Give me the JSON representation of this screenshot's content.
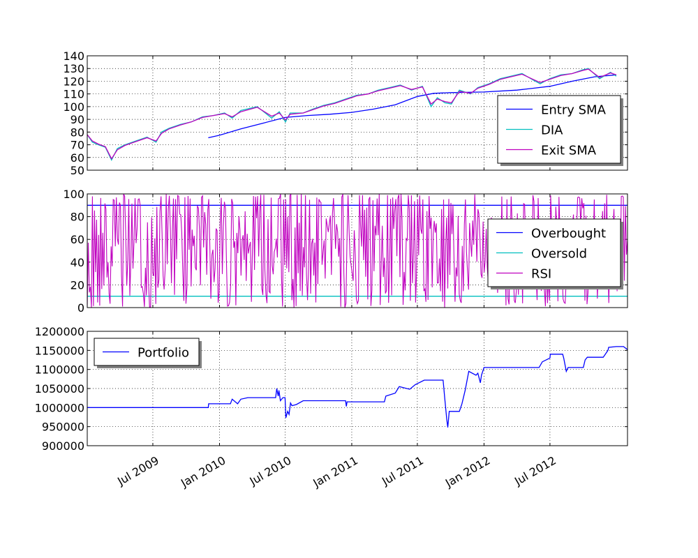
{
  "chart_data": [
    {
      "type": "line",
      "title": "",
      "xlabel": "",
      "ylabel": "",
      "ylim": [
        50,
        140
      ],
      "yticks": [
        "50",
        "60",
        "70",
        "80",
        "90",
        "100",
        "110",
        "120",
        "130",
        "140"
      ],
      "grid": true,
      "legend": "lower-right",
      "series": [
        {
          "name": "Entry SMA",
          "color": "#0000ff",
          "points": [
            [
              "2009-12-01",
              75.5
            ],
            [
              "2010-01-01",
              77.5
            ],
            [
              "2010-03-01",
              82.5
            ],
            [
              "2010-05-01",
              87
            ],
            [
              "2010-07-01",
              91.5
            ],
            [
              "2010-09-01",
              93
            ],
            [
              "2010-11-01",
              94
            ],
            [
              "2011-01-01",
              95.5
            ],
            [
              "2011-03-01",
              98
            ],
            [
              "2011-05-01",
              101.5
            ],
            [
              "2011-07-01",
              108
            ],
            [
              "2011-08-15",
              110.5
            ],
            [
              "2011-10-01",
              111
            ],
            [
              "2012-01-01",
              111.5
            ],
            [
              "2012-04-01",
              113
            ],
            [
              "2012-07-01",
              116
            ],
            [
              "2012-09-01",
              120
            ],
            [
              "2012-11-01",
              123.5
            ],
            [
              "2012-12-31",
              125
            ]
          ]
        },
        {
          "name": "DIA",
          "color": "#00bfbf",
          "points": [
            [
              "2009-01-01",
              78
            ],
            [
              "2009-01-15",
              72
            ],
            [
              "2009-02-01",
              70
            ],
            [
              "2009-02-20",
              68
            ],
            [
              "2009-03-09",
              58
            ],
            [
              "2009-03-25",
              67
            ],
            [
              "2009-04-15",
              70
            ],
            [
              "2009-05-15",
              73
            ],
            [
              "2009-06-15",
              76
            ],
            [
              "2009-07-10",
              72
            ],
            [
              "2009-07-25",
              80
            ],
            [
              "2009-08-15",
              83
            ],
            [
              "2009-09-15",
              86
            ],
            [
              "2009-10-15",
              88
            ],
            [
              "2009-11-15",
              92
            ],
            [
              "2009-12-15",
              93
            ],
            [
              "2010-01-15",
              95
            ],
            [
              "2010-02-05",
              91
            ],
            [
              "2010-03-01",
              97
            ],
            [
              "2010-04-15",
              100
            ],
            [
              "2010-05-25",
              91
            ],
            [
              "2010-06-15",
              96
            ],
            [
              "2010-07-02",
              88
            ],
            [
              "2010-07-15",
              95
            ],
            [
              "2010-08-20",
              95
            ],
            [
              "2010-09-15",
              98
            ],
            [
              "2010-10-15",
              101
            ],
            [
              "2010-11-15",
              103
            ],
            [
              "2010-12-15",
              106
            ],
            [
              "2011-01-15",
              109
            ],
            [
              "2011-02-15",
              110
            ],
            [
              "2011-03-15",
              113
            ],
            [
              "2011-04-15",
              115
            ],
            [
              "2011-05-15",
              117
            ],
            [
              "2011-06-15",
              113
            ],
            [
              "2011-07-15",
              116
            ],
            [
              "2011-08-08",
              100
            ],
            [
              "2011-08-25",
              107
            ],
            [
              "2011-09-15",
              103
            ],
            [
              "2011-10-03",
              102
            ],
            [
              "2011-10-25",
              113
            ],
            [
              "2011-11-25",
              110
            ],
            [
              "2011-12-15",
              115
            ],
            [
              "2012-01-15",
              118
            ],
            [
              "2012-02-15",
              122
            ],
            [
              "2012-03-15",
              124
            ],
            [
              "2012-04-15",
              126
            ],
            [
              "2012-05-15",
              121
            ],
            [
              "2012-06-04",
              118
            ],
            [
              "2012-06-30",
              122
            ],
            [
              "2012-07-31",
              125
            ],
            [
              "2012-08-31",
              126
            ],
            [
              "2012-09-30",
              129
            ],
            [
              "2012-10-15",
              130
            ],
            [
              "2012-11-15",
              122
            ],
            [
              "2012-12-15",
              127
            ],
            [
              "2012-12-31",
              124
            ]
          ]
        },
        {
          "name": "Exit SMA",
          "color": "#bf00bf",
          "points": [
            [
              "2009-01-01",
              78
            ],
            [
              "2009-01-15",
              73
            ],
            [
              "2009-02-01",
              70.5
            ],
            [
              "2009-02-20",
              68.5
            ],
            [
              "2009-03-09",
              59
            ],
            [
              "2009-03-25",
              66
            ],
            [
              "2009-04-15",
              69.5
            ],
            [
              "2009-05-15",
              72.5
            ],
            [
              "2009-06-15",
              75.5
            ],
            [
              "2009-07-10",
              73
            ],
            [
              "2009-07-25",
              79
            ],
            [
              "2009-08-15",
              82.5
            ],
            [
              "2009-09-15",
              85.5
            ],
            [
              "2009-10-15",
              88
            ],
            [
              "2009-11-15",
              91.5
            ],
            [
              "2009-12-15",
              93
            ],
            [
              "2010-01-15",
              94.5
            ],
            [
              "2010-02-05",
              92
            ],
            [
              "2010-03-01",
              96
            ],
            [
              "2010-04-15",
              99.5
            ],
            [
              "2010-05-25",
              92.5
            ],
            [
              "2010-06-15",
              95
            ],
            [
              "2010-07-02",
              89.5
            ],
            [
              "2010-07-15",
              94
            ],
            [
              "2010-08-20",
              95
            ],
            [
              "2010-09-15",
              97.5
            ],
            [
              "2010-10-15",
              100.5
            ],
            [
              "2010-11-15",
              102.5
            ],
            [
              "2010-12-15",
              105.5
            ],
            [
              "2011-01-15",
              108.5
            ],
            [
              "2011-02-15",
              110
            ],
            [
              "2011-03-15",
              112.5
            ],
            [
              "2011-04-15",
              114.5
            ],
            [
              "2011-05-15",
              116.5
            ],
            [
              "2011-06-15",
              113.5
            ],
            [
              "2011-07-15",
              115.5
            ],
            [
              "2011-08-08",
              102
            ],
            [
              "2011-08-25",
              106
            ],
            [
              "2011-09-15",
              104
            ],
            [
              "2011-10-03",
              103
            ],
            [
              "2011-10-25",
              112
            ],
            [
              "2011-11-25",
              110.5
            ],
            [
              "2011-12-15",
              114.5
            ],
            [
              "2012-01-15",
              117.5
            ],
            [
              "2012-02-15",
              121.5
            ],
            [
              "2012-03-15",
              123.5
            ],
            [
              "2012-04-15",
              125.5
            ],
            [
              "2012-05-15",
              121.5
            ],
            [
              "2012-06-04",
              119
            ],
            [
              "2012-06-30",
              121.5
            ],
            [
              "2012-07-31",
              124.5
            ],
            [
              "2012-08-31",
              126
            ],
            [
              "2012-09-30",
              128.5
            ],
            [
              "2012-10-15",
              129.5
            ],
            [
              "2012-11-15",
              123
            ],
            [
              "2012-12-15",
              126.5
            ],
            [
              "2012-12-31",
              125
            ]
          ]
        }
      ]
    },
    {
      "type": "line",
      "title": "",
      "xlabel": "",
      "ylabel": "",
      "ylim": [
        0,
        100
      ],
      "yticks": [
        "0",
        "20",
        "40",
        "60",
        "80",
        "100"
      ],
      "grid": true,
      "legend": "center-right",
      "series": [
        {
          "name": "Overbought",
          "color": "#0000ff",
          "level": 90
        },
        {
          "name": "Oversold",
          "color": "#00bfbf",
          "level": 10
        },
        {
          "name": "RSI",
          "color": "#bf00bf",
          "range": [
            0,
            100
          ],
          "behavior": "oscillates rapidly between about 0 and 100 throughout"
        }
      ]
    },
    {
      "type": "line",
      "title": "",
      "xlabel": "",
      "ylabel": "",
      "ylim": [
        900000,
        1200000
      ],
      "yticks": [
        "900000",
        "950000",
        "1000000",
        "1050000",
        "1100000",
        "1150000",
        "1200000"
      ],
      "grid": true,
      "legend": "upper-left",
      "series": [
        {
          "name": "Portfolio",
          "color": "#0000ff",
          "points": [
            [
              "2009-01-01",
              1000000
            ],
            [
              "2009-12-01",
              1000000
            ],
            [
              "2009-12-02",
              1010000
            ],
            [
              "2010-01-31",
              1010000
            ],
            [
              "2010-02-05",
              1022000
            ],
            [
              "2010-02-20",
              1010000
            ],
            [
              "2010-03-01",
              1022000
            ],
            [
              "2010-03-20",
              1026000
            ],
            [
              "2010-06-05",
              1026000
            ],
            [
              "2010-06-08",
              1050000
            ],
            [
              "2010-06-12",
              1030000
            ],
            [
              "2010-06-14",
              1045000
            ],
            [
              "2010-06-18",
              1018000
            ],
            [
              "2010-06-25",
              1026000
            ],
            [
              "2010-07-01",
              1026000
            ],
            [
              "2010-07-03",
              973000
            ],
            [
              "2010-07-08",
              990000
            ],
            [
              "2010-07-12",
              982000
            ],
            [
              "2010-07-16",
              1012000
            ],
            [
              "2010-07-20",
              1005000
            ],
            [
              "2010-08-01",
              1008000
            ],
            [
              "2010-08-20",
              1018000
            ],
            [
              "2010-12-15",
              1018000
            ],
            [
              "2010-12-17",
              1003000
            ],
            [
              "2010-12-19",
              1015000
            ],
            [
              "2011-04-01",
              1015000
            ],
            [
              "2011-04-05",
              1030000
            ],
            [
              "2011-05-01",
              1038000
            ],
            [
              "2011-05-12",
              1055000
            ],
            [
              "2011-06-10",
              1048000
            ],
            [
              "2011-06-25",
              1060000
            ],
            [
              "2011-07-20",
              1072000
            ],
            [
              "2011-09-10",
              1072000
            ],
            [
              "2011-09-15",
              1020000
            ],
            [
              "2011-09-20",
              970000
            ],
            [
              "2011-09-23",
              948000
            ],
            [
              "2011-09-27",
              990000
            ],
            [
              "2011-10-25",
              990000
            ],
            [
              "2011-11-01",
              1010000
            ],
            [
              "2011-11-10",
              1045000
            ],
            [
              "2011-11-20",
              1095000
            ],
            [
              "2011-12-10",
              1085000
            ],
            [
              "2011-12-15",
              1090000
            ],
            [
              "2011-12-22",
              1065000
            ],
            [
              "2011-12-25",
              1085000
            ],
            [
              "2012-01-01",
              1105000
            ],
            [
              "2012-06-01",
              1105000
            ],
            [
              "2012-06-10",
              1120000
            ],
            [
              "2012-07-01",
              1130000
            ],
            [
              "2012-07-02",
              1140000
            ],
            [
              "2012-08-05",
              1140000
            ],
            [
              "2012-08-08",
              1130000
            ],
            [
              "2012-08-15",
              1095000
            ],
            [
              "2012-08-20",
              1105000
            ],
            [
              "2012-10-01",
              1105000
            ],
            [
              "2012-10-06",
              1125000
            ],
            [
              "2012-10-12",
              1132000
            ],
            [
              "2012-11-25",
              1132000
            ],
            [
              "2012-12-01",
              1140000
            ],
            [
              "2012-12-08",
              1150000
            ],
            [
              "2012-12-10",
              1158000
            ],
            [
              "2012-12-31",
              1160000
            ],
            [
              "2013-01-20",
              1160000
            ],
            [
              "2013-01-31",
              1152000
            ]
          ]
        }
      ]
    }
  ],
  "x_axis": {
    "type": "date",
    "range": [
      "2009-01-01",
      "2013-01-31"
    ],
    "ticks": [
      {
        "date": "2009-07-01",
        "label": "Jul 2009"
      },
      {
        "date": "2010-01-01",
        "label": "Jan 2010"
      },
      {
        "date": "2010-07-01",
        "label": "Jul 2010"
      },
      {
        "date": "2011-01-01",
        "label": "Jan 2011"
      },
      {
        "date": "2011-07-01",
        "label": "Jul 2011"
      },
      {
        "date": "2012-01-01",
        "label": "Jan 2012"
      },
      {
        "date": "2012-07-01",
        "label": "Jul 2012"
      }
    ]
  }
}
